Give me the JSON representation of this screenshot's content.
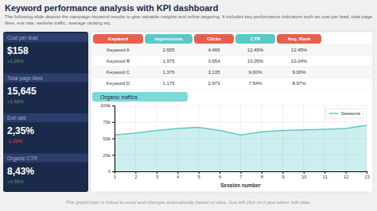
{
  "title": "Keyword performance analysis with KPI dashboard",
  "subtitle": "The following slide depicts the campaign keyword results to give valuable insights and refine targeting. It includes key performance indicators such as cost per lead, total page likes, exit rate, website traffic, average ranking etc.",
  "kpis": [
    {
      "label": "Cost per lead",
      "value": "$158",
      "change": "+1.26%",
      "color": "#4caf50"
    },
    {
      "label": "Total page likes",
      "value": "15,645",
      "change": "+1.66%",
      "color": "#4caf50"
    },
    {
      "label": "Exit rate",
      "value": "2,35%",
      "change": "-1.33%",
      "color": "#f44336"
    },
    {
      "label": "Organic CTR",
      "value": "8,43%",
      "change": "+0.55%",
      "color": "#4caf50"
    }
  ],
  "table": {
    "headers": [
      "Keyword",
      "Impressions",
      "Clicks",
      "CTR",
      "Avg. Rank"
    ],
    "colors": [
      "#e8604c",
      "#5bc8c8",
      "#e8604c",
      "#5bc8c8",
      "#e8604c"
    ],
    "rows": [
      [
        "Keyword A",
        "2,655",
        "4,465",
        "12,45%",
        "12.45%"
      ],
      [
        "Keyword B",
        "1,975",
        "3,654",
        "10,05%",
        "10.04%"
      ],
      [
        "Keyword C",
        "1,376",
        "3,135",
        "9,00%",
        "9.00%"
      ],
      [
        "Keyword D",
        "1,175",
        "2,973",
        "7,54%",
        "8.97%"
      ]
    ]
  },
  "footer": "This graph/chart is linked to excel and changes automatically based on data. Just left click on it and select 'edit data'.",
  "chart_data": {
    "type": "area",
    "title": "Organic traffics",
    "x_label": "Session number",
    "x": [
      1,
      2,
      3,
      4,
      5,
      6,
      7,
      8,
      9,
      10,
      11,
      12,
      13
    ],
    "series": [
      {
        "name": "Sessions",
        "color": "#5bc8c8",
        "values": [
          55000,
          58000,
          62000,
          65000,
          67000,
          62000,
          55000,
          60000,
          62000,
          63000,
          64000,
          65000,
          70000
        ]
      }
    ],
    "xlim": [
      1,
      13
    ],
    "xticks": [
      1,
      2,
      3,
      4,
      5,
      6,
      7,
      8,
      9,
      10,
      11,
      12,
      13
    ],
    "ylim": [
      0,
      100000
    ],
    "yticks": [
      0,
      {
        "value": 25000,
        "label": "25k"
      },
      {
        "value": 50000,
        "label": "50k"
      },
      {
        "value": 75000,
        "label": "75k"
      },
      {
        "value": 100000,
        "label": "100k"
      }
    ],
    "grid": true,
    "legend": "upper right"
  }
}
